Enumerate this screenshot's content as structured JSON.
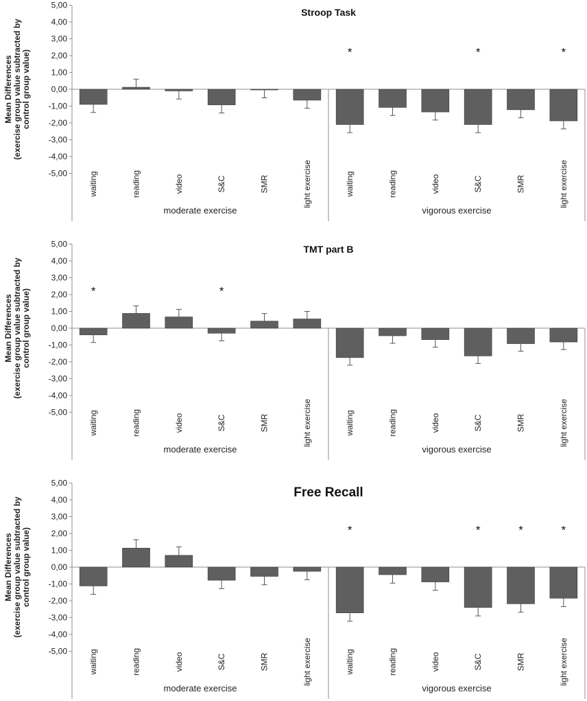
{
  "chart_data": [
    {
      "type": "bar",
      "title": "Stroop Task",
      "ylabel_lines": [
        "Mean Differences",
        "(exercise group value subtracted by",
        "control group value)"
      ],
      "ylim": [
        -5,
        5
      ],
      "yticks": [
        "5,00",
        "4,00",
        "3,00",
        "2,00",
        "1,00",
        "0,00",
        "-1,00",
        "-2,00",
        "-3,00",
        "-4,00",
        "-5,00"
      ],
      "categories": [
        "waiting",
        "reading",
        "video",
        "S&C",
        "SMR",
        "light exercise",
        "waiting",
        "reading",
        "video",
        "S&C",
        "SMR",
        "light exercise"
      ],
      "groups": [
        "moderate exercise",
        "vigorous exercise"
      ],
      "values": [
        -0.9,
        0.12,
        -0.1,
        -0.93,
        -0.03,
        -0.65,
        -2.1,
        -1.08,
        -1.35,
        -2.1,
        -1.22,
        -1.88
      ],
      "errors": [
        0.48,
        0.48,
        0.48,
        0.48,
        0.48,
        0.48,
        0.48,
        0.48,
        0.48,
        0.48,
        0.48,
        0.48
      ],
      "significance": [
        "",
        "",
        "",
        "",
        "",
        "",
        "*",
        "",
        "",
        "*",
        "",
        "*"
      ]
    },
    {
      "type": "bar",
      "title": "TMT part B",
      "ylabel_lines": [
        "Mean Differences",
        "(exercise group value subtracted by",
        "control group value)"
      ],
      "ylim": [
        -5,
        5
      ],
      "yticks": [
        "5,00",
        "4,00",
        "3,00",
        "2,00",
        "1,00",
        "0,00",
        "-1,00",
        "-2,00",
        "-3,00",
        "-4,00",
        "-5,00"
      ],
      "categories": [
        "waiting",
        "reading",
        "video",
        "S&C",
        "SMR",
        "light exercise",
        "waiting",
        "reading",
        "video",
        "S&C",
        "SMR",
        "light exercise"
      ],
      "groups": [
        "moderate exercise",
        "vigorous exercise"
      ],
      "values": [
        -0.4,
        0.88,
        0.67,
        -0.3,
        0.42,
        0.55,
        -1.75,
        -0.45,
        -0.68,
        -1.65,
        -0.92,
        -0.82
      ],
      "errors": [
        0.45,
        0.45,
        0.45,
        0.45,
        0.45,
        0.45,
        0.45,
        0.45,
        0.45,
        0.45,
        0.45,
        0.45
      ],
      "significance": [
        "*",
        "",
        "",
        "*",
        "",
        "",
        "",
        "",
        "",
        "",
        "",
        ""
      ]
    },
    {
      "type": "bar",
      "title": "Free Recall",
      "ylabel_lines": [
        "Mean Differences",
        "(exercise group value subtracted by",
        "control group value)"
      ],
      "ylim": [
        -5,
        5
      ],
      "yticks": [
        "5,00",
        "4,00",
        "3,00",
        "2,00",
        "1,00",
        "0,00",
        "-1,00",
        "-2,00",
        "-3,00",
        "-4,00",
        "-5,00"
      ],
      "categories": [
        "waiting",
        "reading",
        "video",
        "S&C",
        "SMR",
        "light exercise",
        "waiting",
        "reading",
        "video",
        "S&C",
        "SMR",
        "light exercise"
      ],
      "groups": [
        "moderate exercise",
        "vigorous exercise"
      ],
      "values": [
        -1.12,
        1.13,
        0.7,
        -0.78,
        -0.55,
        -0.25,
        -2.72,
        -0.45,
        -0.88,
        -2.4,
        -2.18,
        -1.85
      ],
      "errors": [
        0.5,
        0.5,
        0.5,
        0.5,
        0.5,
        0.5,
        0.5,
        0.5,
        0.5,
        0.5,
        0.5,
        0.5
      ],
      "significance": [
        "",
        "",
        "",
        "",
        "",
        "",
        "*",
        "",
        "",
        "*",
        "*",
        "*"
      ]
    }
  ],
  "style": {
    "bar_color": "#5f5f5f",
    "bar_stroke": "#3a3a3a",
    "axis_color": "#8c8c8c",
    "text_color": "#222222"
  }
}
